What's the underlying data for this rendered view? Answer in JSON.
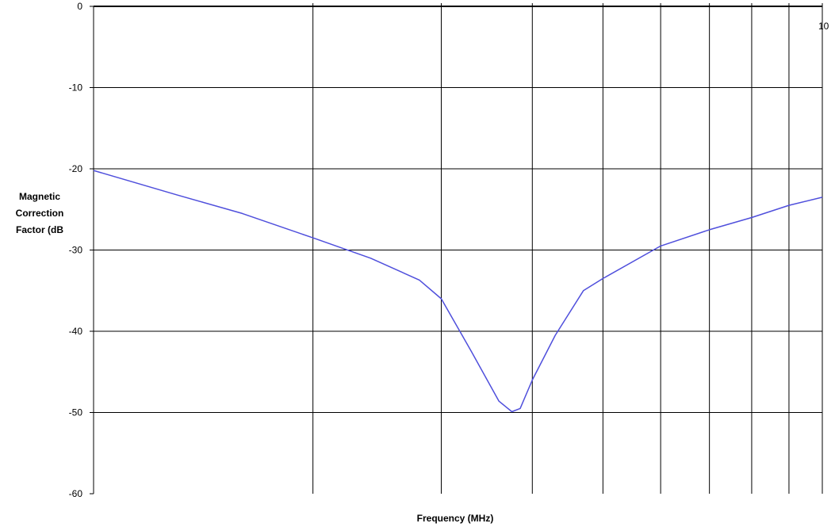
{
  "chart_data": {
    "type": "line",
    "xlabel": "Frequency (MHz)",
    "ylabel": "Magnetic Correction Factor (dB",
    "ylabel_lines": [
      "Magnetic",
      "Correction",
      "Factor (dB"
    ],
    "x_scale": "log",
    "xlim": [
      1,
      10
    ],
    "ylim": [
      -60,
      0
    ],
    "y_ticks": [
      0,
      -10,
      -20,
      -30,
      -40,
      -50,
      -60
    ],
    "y_tick_labels": [
      "0",
      "-10",
      "-20",
      "-30",
      "-40",
      "-50",
      "-60"
    ],
    "x_tick_labels": [
      {
        "value": 10,
        "label": "10"
      }
    ],
    "x_gridlines": [
      2,
      3,
      4,
      5,
      6,
      7,
      8,
      9
    ],
    "grid": true,
    "legend": "none",
    "line_color": "#4f4fdc",
    "grid_color": "#000000",
    "series": [
      {
        "x": [
          1.0,
          1.3,
          1.6,
          2.0,
          2.4,
          2.8,
          3.0,
          3.3,
          3.6,
          3.75,
          3.85,
          4.0,
          4.3,
          4.7,
          5.0,
          6.0,
          7.0,
          8.0,
          9.0,
          10.0
        ],
        "values": [
          -20.2,
          -23.2,
          -25.5,
          -28.5,
          -31.0,
          -33.7,
          -36.0,
          -42.5,
          -48.6,
          -49.9,
          -49.5,
          -46.0,
          -40.5,
          -35.0,
          -33.5,
          -29.5,
          -27.5,
          -26.0,
          -24.5,
          -23.5
        ]
      }
    ]
  }
}
